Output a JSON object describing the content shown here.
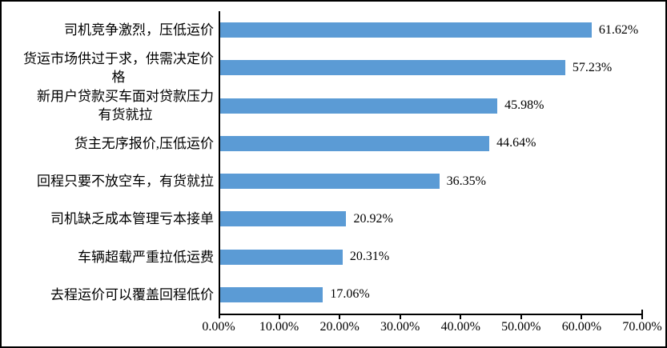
{
  "chart_data": {
    "type": "bar",
    "orientation": "horizontal",
    "title": "",
    "xlabel": "",
    "ylabel": "",
    "categories": [
      "司机竞争激烈，压低运价",
      "货运市场供过于求，供需决定价\n格",
      "新用户贷款买车面对贷款压力\n有货就拉",
      "货主无序报价,压低运价",
      "回程只要不放空车，有货就拉",
      "司机缺乏成本管理亏本接单",
      "车辆超载严重拉低运费",
      "去程运价可以覆盖回程低价"
    ],
    "values": [
      61.62,
      57.23,
      45.98,
      44.64,
      36.35,
      20.92,
      20.31,
      17.06
    ],
    "value_labels": [
      "61.62%",
      "57.23%",
      "45.98%",
      "44.64%",
      "36.35%",
      "20.92%",
      "20.31%",
      "17.06%"
    ],
    "x_ticks": [
      "0.00%",
      "10.00%",
      "20.00%",
      "30.00%",
      "40.00%",
      "50.00%",
      "60.00%",
      "70.00%"
    ],
    "xlim": [
      0,
      70
    ],
    "grid": false,
    "legend": false,
    "bar_color": "#5B9BD5",
    "axis_color": "#000000",
    "text_color": "#000000",
    "background_color": "#FFFFFF",
    "border_color": "#000000"
  }
}
